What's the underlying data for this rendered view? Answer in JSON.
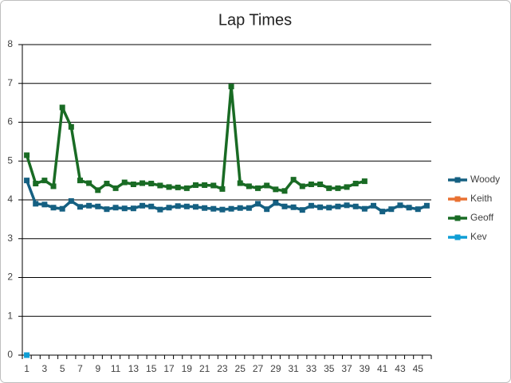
{
  "chart_data": {
    "type": "line",
    "title": "Lap Times",
    "categories": [
      1,
      null,
      3,
      null,
      5,
      null,
      7,
      null,
      9,
      null,
      11,
      null,
      13,
      null,
      15,
      null,
      17,
      null,
      19,
      null,
      21,
      null,
      23,
      null,
      25,
      null,
      27,
      null,
      29,
      null,
      31,
      null,
      33,
      null,
      35,
      null,
      37,
      null,
      39,
      null,
      41,
      null,
      43,
      null,
      45,
      null
    ],
    "series": [
      {
        "name": "Woody",
        "color": "#156082",
        "values": [
          4.5,
          3.9,
          3.88,
          3.8,
          3.77,
          3.97,
          3.82,
          3.85,
          3.83,
          3.76,
          3.8,
          3.78,
          3.78,
          3.85,
          3.83,
          3.75,
          3.8,
          3.84,
          3.83,
          3.82,
          3.79,
          3.77,
          3.75,
          3.77,
          3.79,
          3.79,
          3.9,
          3.76,
          3.92,
          3.83,
          3.81,
          3.74,
          3.85,
          3.81,
          3.8,
          3.83,
          3.86,
          3.83,
          3.77,
          3.85,
          3.7,
          3.76,
          3.86,
          3.8,
          3.76,
          3.85
        ]
      },
      {
        "name": "Keith",
        "color": "#e97132",
        "values": [
          null,
          null,
          null,
          null,
          null,
          null,
          null,
          null,
          null,
          null,
          null,
          null,
          null,
          null,
          null,
          null,
          null,
          null,
          null,
          null,
          null,
          null,
          null,
          null,
          null,
          null,
          null,
          null,
          null,
          null,
          null,
          null,
          null,
          null,
          null,
          null,
          null,
          null,
          null,
          null,
          null,
          null,
          null,
          null,
          null,
          null
        ]
      },
      {
        "name": "Geoff",
        "color": "#196b24",
        "values": [
          5.15,
          4.42,
          4.5,
          4.35,
          6.38,
          5.88,
          4.5,
          4.43,
          4.25,
          4.42,
          4.3,
          4.45,
          4.4,
          4.43,
          4.42,
          4.37,
          4.33,
          4.32,
          4.3,
          4.38,
          4.38,
          4.37,
          4.28,
          6.92,
          4.43,
          4.35,
          4.3,
          4.37,
          4.27,
          4.23,
          4.52,
          4.35,
          4.4,
          4.4,
          4.3,
          4.3,
          4.33,
          4.42,
          4.48,
          null,
          null,
          null,
          null,
          null,
          null,
          null
        ]
      },
      {
        "name": "Kev",
        "color": "#0f9ed5",
        "values": [
          0,
          null,
          null,
          null,
          null,
          null,
          null,
          null,
          null,
          null,
          null,
          null,
          null,
          null,
          null,
          null,
          null,
          null,
          null,
          null,
          null,
          null,
          null,
          null,
          null,
          null,
          null,
          null,
          null,
          null,
          null,
          null,
          null,
          null,
          null,
          null,
          null,
          null,
          null,
          null,
          null,
          null,
          null,
          null,
          null,
          null
        ]
      }
    ],
    "ylim": [
      0,
      8
    ],
    "yticks": [
      0,
      1,
      2,
      3,
      4,
      5,
      6,
      7,
      8
    ],
    "grid": true,
    "legend": "right"
  }
}
